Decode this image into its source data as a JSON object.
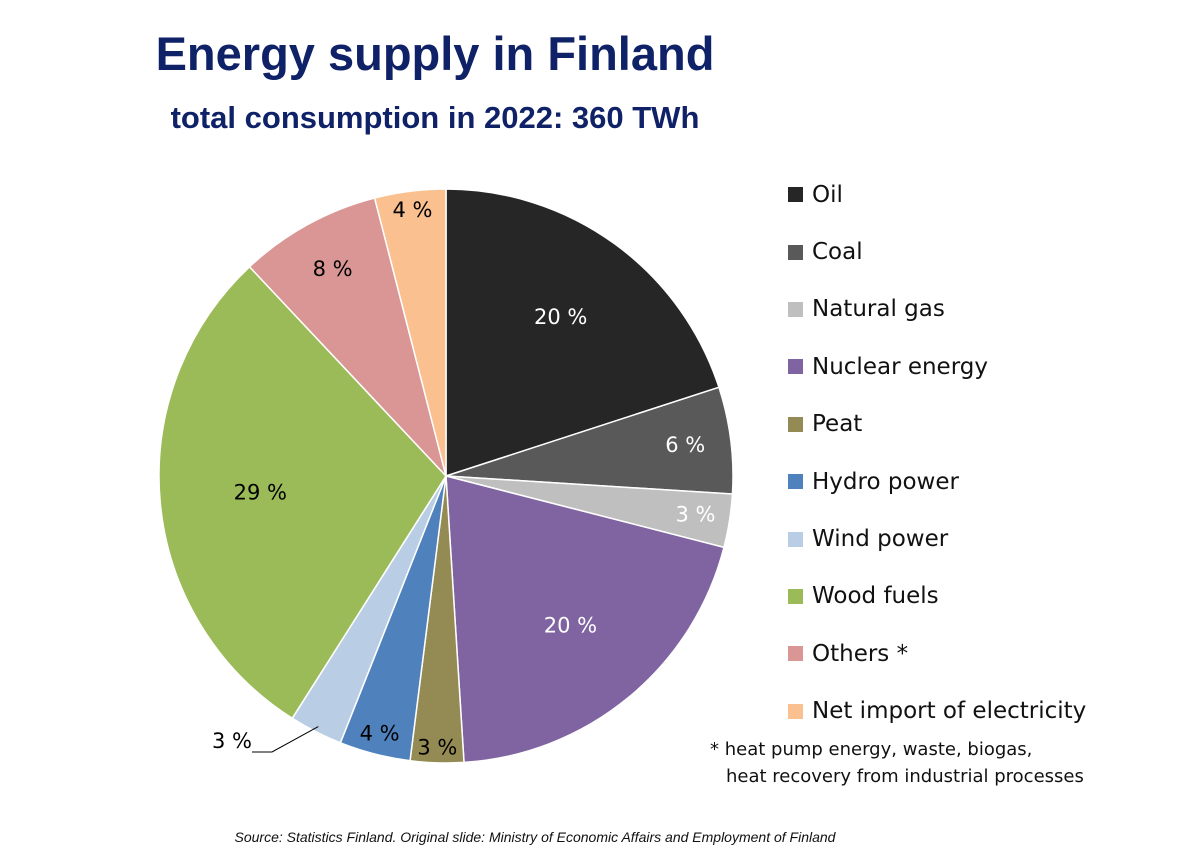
{
  "chart_data": {
    "type": "pie",
    "title": "Energy supply in Finland",
    "subtitle": "total consumption in 2022: 360 TWh",
    "slices": [
      {
        "name": "Oil",
        "value": 20,
        "label": "20 %",
        "color": "#262626",
        "label_color": "#ffffff"
      },
      {
        "name": "Coal",
        "value": 6,
        "label": "6 %",
        "color": "#595959",
        "label_color": "#ffffff"
      },
      {
        "name": "Natural gas",
        "value": 3,
        "label": "3 %",
        "color": "#bfbfbf",
        "label_color": "#ffffff"
      },
      {
        "name": "Nuclear energy",
        "value": 20,
        "label": "20 %",
        "color": "#8064a2",
        "label_color": "#ffffff"
      },
      {
        "name": "Peat",
        "value": 3,
        "label": "3 %",
        "color": "#948a54",
        "label_color": "#000000"
      },
      {
        "name": "Hydro power",
        "value": 4,
        "label": "4 %",
        "color": "#4f81bd",
        "label_color": "#000000"
      },
      {
        "name": "Wind power",
        "value": 3,
        "label": "3 %",
        "color": "#b9cde5",
        "label_color": "#000000"
      },
      {
        "name": "Wood fuels",
        "value": 29,
        "label": "29 %",
        "color": "#9bbb59",
        "label_color": "#000000"
      },
      {
        "name": "Others *",
        "value": 8,
        "label": "8 %",
        "color": "#d99694",
        "label_color": "#000000"
      },
      {
        "name": "Net import of electricity",
        "value": 4,
        "label": "4 %",
        "color": "#fac090",
        "label_color": "#000000"
      }
    ],
    "legend_position": "right"
  },
  "footnote": {
    "line1": "* heat pump energy, waste, biogas,",
    "line2": "heat recovery from industrial processes"
  },
  "source": "Source: Statistics Finland. Original slide: Ministry of Economic Affairs and Employment of Finland"
}
